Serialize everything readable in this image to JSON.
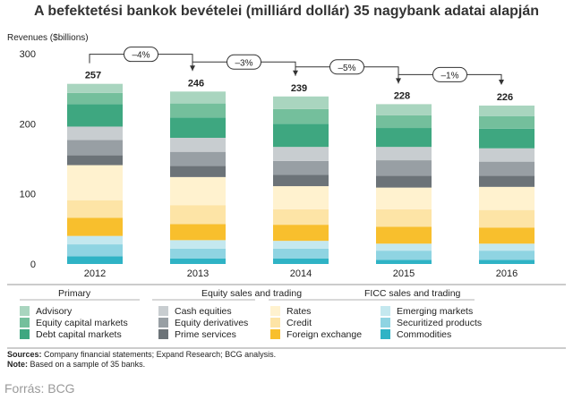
{
  "page": {
    "title": "A befektetési bankok bevételei (milliárd dollár) 35 nagybank adatai alapján",
    "sources_label": "Sources:",
    "sources_text": "Company financial statements; Expand Research; BCG analysis.",
    "note_label": "Note:",
    "note_text": "Based on a sample of 35 banks.",
    "credit": "Forrás: BCG"
  },
  "chart_data": {
    "type": "bar",
    "stacked": true,
    "title": "A befektetési bankok bevételei (milliárd dollár) 35 nagybank adatai alapján",
    "ylabel": "Revenues ($billions)",
    "xlabel": "",
    "ylim": [
      0,
      300
    ],
    "yticks": [
      0,
      100,
      200,
      300
    ],
    "grid": false,
    "legend_position": "bottom",
    "categories": [
      "2012",
      "2013",
      "2014",
      "2015",
      "2016"
    ],
    "totals": [
      257,
      246,
      239,
      228,
      226
    ],
    "changes": [
      "–4%",
      "–3%",
      "–5%",
      "–1%"
    ],
    "legend_groups": [
      {
        "title": "Primary",
        "items": [
          "Advisory",
          "Equity capital markets",
          "Debt capital markets"
        ]
      },
      {
        "title": "Equity sales and trading",
        "items": [
          "Cash equities",
          "Equity derivatives",
          "Prime services"
        ]
      },
      {
        "title": "FICC sales and trading",
        "items": [
          "Rates",
          "Credit",
          "Foreign exchange",
          "Emerging markets",
          "Securitized products",
          "Commodities"
        ]
      }
    ],
    "series": [
      {
        "name": "Commodities",
        "color": "#2fb3c5",
        "values": [
          11,
          8,
          8,
          6,
          6
        ]
      },
      {
        "name": "Securitized products",
        "color": "#8fd4e2",
        "values": [
          17,
          14,
          14,
          13,
          13
        ]
      },
      {
        "name": "Emerging markets",
        "color": "#c4e8ef",
        "values": [
          12,
          12,
          11,
          10,
          10
        ]
      },
      {
        "name": "Foreign exchange",
        "color": "#f8bf2d",
        "values": [
          26,
          23,
          23,
          24,
          23
        ]
      },
      {
        "name": "Credit",
        "color": "#fde4a6",
        "values": [
          25,
          27,
          22,
          25,
          25
        ]
      },
      {
        "name": "Rates",
        "color": "#fff2cf",
        "values": [
          50,
          40,
          33,
          31,
          33
        ]
      },
      {
        "name": "Prime services",
        "color": "#6c7378",
        "values": [
          14,
          16,
          16,
          17,
          16
        ]
      },
      {
        "name": "Equity derivatives",
        "color": "#989fa4",
        "values": [
          22,
          20,
          20,
          22,
          20
        ]
      },
      {
        "name": "Cash equities",
        "color": "#c8cdd0",
        "values": [
          19,
          20,
          20,
          19,
          19
        ]
      },
      {
        "name": "Debt capital markets",
        "color": "#3ea780",
        "values": [
          32,
          29,
          33,
          27,
          28
        ]
      },
      {
        "name": "Equity capital markets",
        "color": "#74bf9c",
        "values": [
          16,
          20,
          21,
          18,
          18
        ]
      },
      {
        "name": "Advisory",
        "color": "#a9d5bf",
        "values": [
          13,
          17,
          18,
          16,
          15
        ]
      }
    ]
  }
}
